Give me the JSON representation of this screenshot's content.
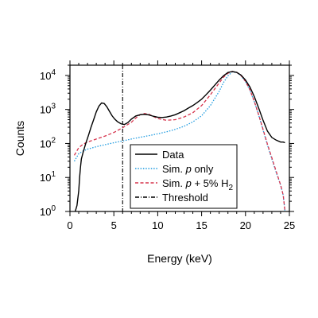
{
  "chart_data": {
    "type": "line",
    "xlabel": "Energy (keV)",
    "ylabel": "Counts",
    "xlim": [
      0,
      25
    ],
    "ylim": [
      1,
      20000
    ],
    "yscale": "log",
    "x_ticks": [
      "0",
      "5",
      "10",
      "15",
      "20",
      "25"
    ],
    "y_ticks": [
      {
        "base": "10",
        "exp": "0"
      },
      {
        "base": "10",
        "exp": "1"
      },
      {
        "base": "10",
        "exp": "2"
      },
      {
        "base": "10",
        "exp": "3"
      },
      {
        "base": "10",
        "exp": "4"
      }
    ],
    "grid": false,
    "legend_position": "center-right",
    "threshold": {
      "label": "Threshold",
      "x": 6.0
    },
    "series": [
      {
        "name": "Data",
        "style": "solid",
        "color": "#000000",
        "points": [
          [
            0.6,
            1
          ],
          [
            0.8,
            1.5
          ],
          [
            1.0,
            4
          ],
          [
            1.1,
            10
          ],
          [
            1.2,
            20
          ],
          [
            1.3,
            35
          ],
          [
            1.5,
            55
          ],
          [
            1.8,
            100
          ],
          [
            2.1,
            170
          ],
          [
            2.4,
            300
          ],
          [
            2.7,
            500
          ],
          [
            3.0,
            850
          ],
          [
            3.3,
            1250
          ],
          [
            3.6,
            1550
          ],
          [
            3.9,
            1500
          ],
          [
            4.2,
            1200
          ],
          [
            4.5,
            880
          ],
          [
            4.8,
            650
          ],
          [
            5.1,
            520
          ],
          [
            5.4,
            440
          ],
          [
            5.8,
            380
          ],
          [
            6.2,
            360
          ],
          [
            6.6,
            410
          ],
          [
            7.0,
            520
          ],
          [
            7.5,
            640
          ],
          [
            8.0,
            700
          ],
          [
            8.5,
            720
          ],
          [
            9.0,
            690
          ],
          [
            9.5,
            630
          ],
          [
            10.0,
            590
          ],
          [
            10.5,
            580
          ],
          [
            11.0,
            600
          ],
          [
            11.5,
            640
          ],
          [
            12.0,
            700
          ],
          [
            12.5,
            800
          ],
          [
            13.0,
            920
          ],
          [
            13.5,
            1100
          ],
          [
            14.0,
            1300
          ],
          [
            14.5,
            1600
          ],
          [
            15.0,
            2000
          ],
          [
            15.5,
            2700
          ],
          [
            16.0,
            3700
          ],
          [
            16.5,
            5200
          ],
          [
            17.0,
            7300
          ],
          [
            17.5,
            9800
          ],
          [
            18.0,
            12200
          ],
          [
            18.5,
            13000
          ],
          [
            19.0,
            12300
          ],
          [
            19.5,
            10200
          ],
          [
            20.0,
            7300
          ],
          [
            20.5,
            4600
          ],
          [
            21.0,
            2400
          ],
          [
            21.5,
            1100
          ],
          [
            22.0,
            480
          ],
          [
            22.5,
            230
          ],
          [
            23.0,
            150
          ],
          [
            23.5,
            125
          ],
          [
            24.0,
            110
          ],
          [
            24.3,
            110
          ],
          [
            24.5,
            105
          ]
        ]
      },
      {
        "name": "Sim. p only",
        "label_plain": "Sim. ",
        "label_italic": "p",
        "label_rest": " only",
        "style": "dotted",
        "color": "#1f9be0",
        "points": [
          [
            0.5,
            30
          ],
          [
            1.0,
            50
          ],
          [
            1.5,
            60
          ],
          [
            2.0,
            68
          ],
          [
            3.0,
            80
          ],
          [
            4.0,
            92
          ],
          [
            5.0,
            105
          ],
          [
            6.0,
            118
          ],
          [
            7.0,
            135
          ],
          [
            8.0,
            152
          ],
          [
            9.0,
            170
          ],
          [
            10.0,
            192
          ],
          [
            11.0,
            220
          ],
          [
            12.0,
            260
          ],
          [
            13.0,
            320
          ],
          [
            14.0,
            430
          ],
          [
            15.0,
            650
          ],
          [
            16.0,
            1300
          ],
          [
            17.0,
            3400
          ],
          [
            17.5,
            6200
          ],
          [
            18.0,
            9800
          ],
          [
            18.5,
            12700
          ],
          [
            19.0,
            12200
          ],
          [
            19.5,
            9800
          ],
          [
            20.0,
            6600
          ],
          [
            20.5,
            3700
          ],
          [
            21.0,
            1700
          ],
          [
            21.5,
            680
          ],
          [
            22.0,
            250
          ],
          [
            22.5,
            90
          ],
          [
            23.0,
            35
          ],
          [
            23.5,
            14
          ],
          [
            24.0,
            6
          ],
          [
            24.3,
            3
          ],
          [
            24.5,
            1
          ]
        ]
      },
      {
        "name": "Sim. p + 5% H2",
        "label_plain": "Sim. ",
        "label_italic": "p",
        "label_rest": " + 5% H",
        "label_sub": "2",
        "style": "dashed",
        "color": "#d6334c",
        "points": [
          [
            0.5,
            45
          ],
          [
            1.0,
            75
          ],
          [
            1.5,
            95
          ],
          [
            2.0,
            110
          ],
          [
            3.0,
            135
          ],
          [
            4.0,
            165
          ],
          [
            5.0,
            210
          ],
          [
            6.0,
            290
          ],
          [
            7.0,
            420
          ],
          [
            7.5,
            560
          ],
          [
            8.0,
            700
          ],
          [
            8.5,
            760
          ],
          [
            9.0,
            720
          ],
          [
            9.5,
            620
          ],
          [
            10.0,
            540
          ],
          [
            11.0,
            480
          ],
          [
            12.0,
            500
          ],
          [
            13.0,
            600
          ],
          [
            14.0,
            800
          ],
          [
            15.0,
            1300
          ],
          [
            16.0,
            2700
          ],
          [
            17.0,
            6000
          ],
          [
            17.5,
            8900
          ],
          [
            18.0,
            11600
          ],
          [
            18.5,
            13100
          ],
          [
            19.0,
            12300
          ],
          [
            19.5,
            9900
          ],
          [
            20.0,
            6700
          ],
          [
            20.5,
            3800
          ],
          [
            21.0,
            1750
          ],
          [
            21.5,
            700
          ],
          [
            22.0,
            260
          ],
          [
            22.5,
            95
          ],
          [
            23.0,
            38
          ],
          [
            23.5,
            15
          ],
          [
            24.0,
            6
          ],
          [
            24.3,
            3
          ],
          [
            24.5,
            1
          ]
        ]
      }
    ]
  }
}
